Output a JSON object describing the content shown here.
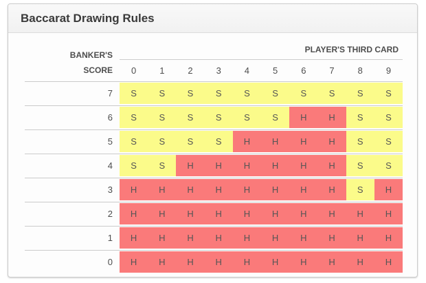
{
  "panel": {
    "title": "Baccarat Drawing Rules"
  },
  "table": {
    "row_header_line1": "BANKER'S",
    "row_header_line2": "SCORE",
    "col_header": "PLAYER'S THIRD CARD"
  },
  "chart_data": {
    "type": "heatmap",
    "title": "Baccarat Drawing Rules",
    "x_label": "PLAYER'S THIRD CARD",
    "y_label": "BANKER'S SCORE",
    "x_ticks": [
      "0",
      "1",
      "2",
      "3",
      "4",
      "5",
      "6",
      "7",
      "8",
      "9"
    ],
    "y_ticks": [
      "7",
      "6",
      "5",
      "4",
      "3",
      "2",
      "1",
      "0"
    ],
    "matrix": [
      [
        "S",
        "S",
        "S",
        "S",
        "S",
        "S",
        "S",
        "S",
        "S",
        "S"
      ],
      [
        "S",
        "S",
        "S",
        "S",
        "S",
        "S",
        "H",
        "H",
        "S",
        "S"
      ],
      [
        "S",
        "S",
        "S",
        "S",
        "H",
        "H",
        "H",
        "H",
        "S",
        "S"
      ],
      [
        "S",
        "S",
        "H",
        "H",
        "H",
        "H",
        "H",
        "H",
        "S",
        "S"
      ],
      [
        "H",
        "H",
        "H",
        "H",
        "H",
        "H",
        "H",
        "H",
        "S",
        "H"
      ],
      [
        "H",
        "H",
        "H",
        "H",
        "H",
        "H",
        "H",
        "H",
        "H",
        "H"
      ],
      [
        "H",
        "H",
        "H",
        "H",
        "H",
        "H",
        "H",
        "H",
        "H",
        "H"
      ],
      [
        "H",
        "H",
        "H",
        "H",
        "H",
        "H",
        "H",
        "H",
        "H",
        "H"
      ]
    ],
    "cell_color_map": {
      "S": "#fbfb8a",
      "H": "#fa7a7a"
    },
    "legend_position": "none",
    "grid": "horizontal-lines-only"
  },
  "colors": {
    "stand_bg": "#fbfb8a",
    "hit_bg": "#fa7a7a",
    "row_line": "#cbcbcb",
    "card_border": "#cccccc",
    "titlebar_bg": "#f5f5f5",
    "title_text": "#3a3a3a",
    "label_text": "#4d4d4d",
    "cell_text": "#555555"
  }
}
